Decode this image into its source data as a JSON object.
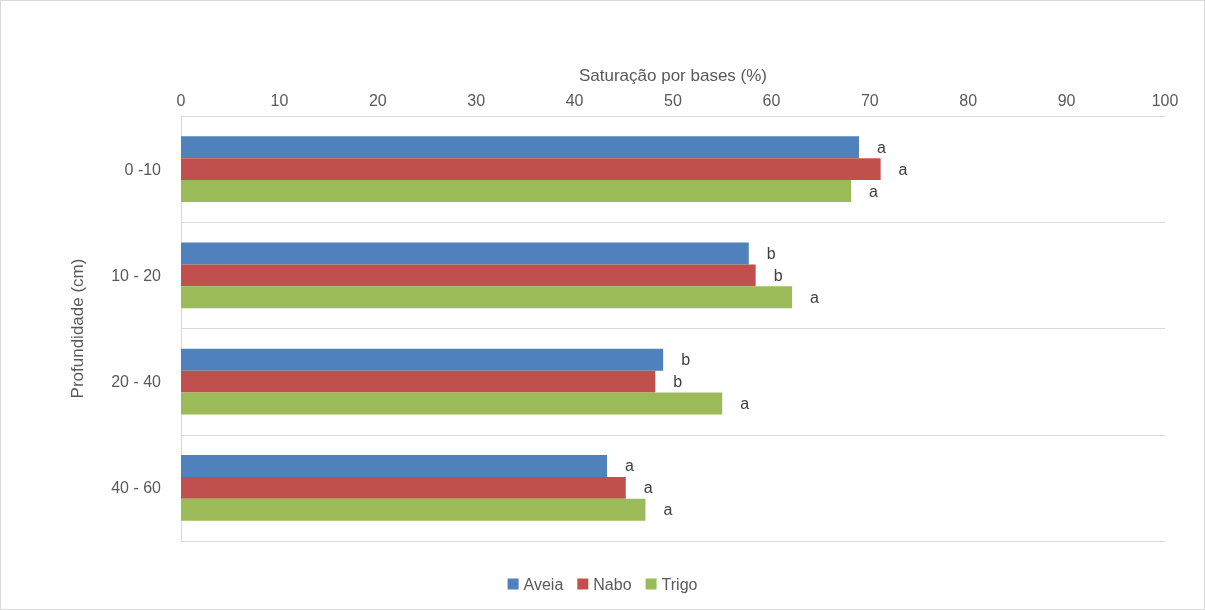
{
  "chart_data": {
    "type": "bar",
    "orientation": "horizontal",
    "xlabel": "Saturação por bases (%)",
    "ylabel": "Profundidade (cm)",
    "categories": [
      "0 -10",
      "10 - 20",
      "20 - 40",
      "40 - 60"
    ],
    "series": [
      {
        "name": "Aveia",
        "color": "#4f81bd",
        "values": [
          68.9,
          57.7,
          49.0,
          43.3
        ],
        "value_labels": [
          "a",
          "b",
          "b",
          "a"
        ]
      },
      {
        "name": "Nabo",
        "color": "#c0504d",
        "values": [
          71.1,
          58.4,
          48.2,
          45.2
        ],
        "value_labels": [
          "a",
          "b",
          "b",
          "a"
        ]
      },
      {
        "name": "Trigo",
        "color": "#9bbb59",
        "values": [
          68.1,
          62.1,
          55.0,
          47.2
        ],
        "value_labels": [
          "a",
          "a",
          "a",
          "a"
        ]
      }
    ],
    "xlim": [
      0,
      100
    ],
    "xticks": [
      0,
      10,
      20,
      30,
      40,
      50,
      60,
      70,
      80,
      90,
      100
    ],
    "grid": "y",
    "legend": "bottom"
  }
}
